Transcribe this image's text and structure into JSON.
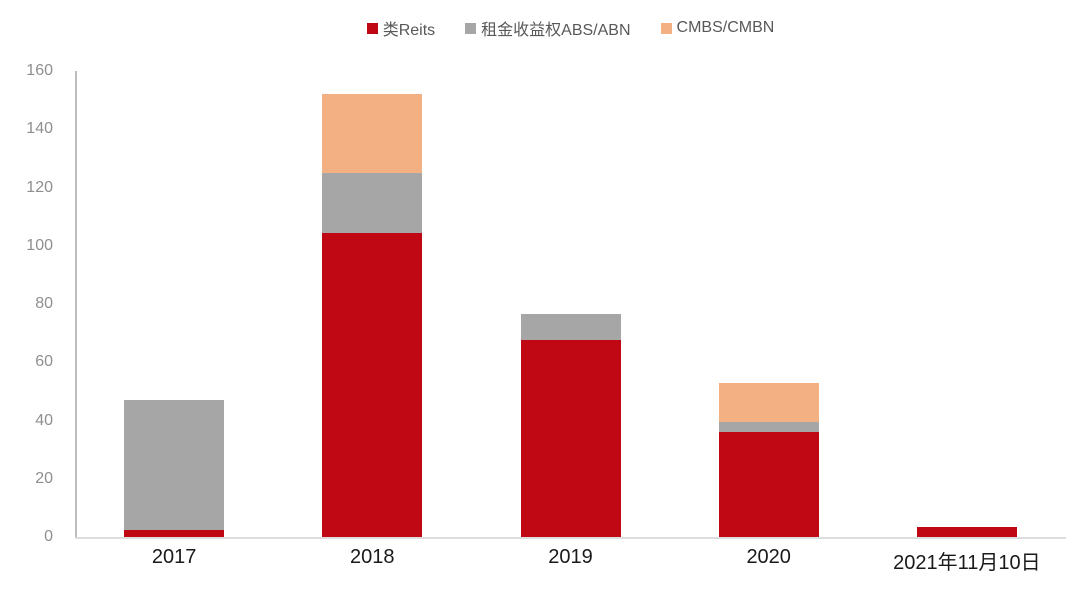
{
  "chart_data": {
    "type": "bar",
    "stacked": true,
    "title": "",
    "xlabel": "",
    "ylabel": "",
    "categories": [
      "2017",
      "2018",
      "2019",
      "2020",
      "2021年11月10日"
    ],
    "series": [
      {
        "name": "类Reits",
        "color": "#C00714",
        "values": [
          2.5,
          104.5,
          67.5,
          36,
          3.5
        ]
      },
      {
        "name": "租金收益权ABS/ABN",
        "color": "#A6A6A6",
        "values": [
          44.5,
          20.5,
          9,
          3.5,
          0
        ]
      },
      {
        "name": "CMBS/CMBN",
        "color": "#F3B183",
        "values": [
          0,
          27,
          0,
          13.5,
          0
        ]
      }
    ],
    "ylim": [
      0,
      160
    ],
    "yticks": [
      0,
      20,
      40,
      60,
      80,
      100,
      120,
      140,
      160
    ],
    "grid": false,
    "legend_position": "top-center"
  },
  "colors": {
    "background": "#FFFFFF",
    "y_axis_line": "#BDBDBD",
    "x_axis_line": "#DDDDDD",
    "y_tick_label": "#8F8F8F",
    "x_axis_label": "#1A1A1A",
    "legend_text": "#595959"
  }
}
